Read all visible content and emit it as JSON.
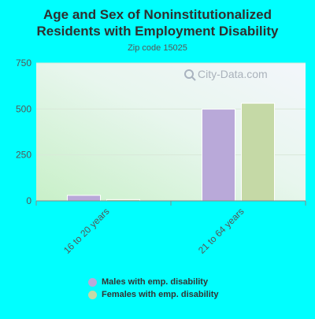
{
  "chart_data": {
    "type": "bar",
    "title_lines": [
      "Age and Sex of Noninstitutionalized",
      "Residents with Employment Disability"
    ],
    "subtitle": "Zip code 15025",
    "watermark": "City-Data.com",
    "categories": [
      "16 to 20 years",
      "21 to 64 years"
    ],
    "series": [
      {
        "name": "Males with emp. disability",
        "color": "#b9a9d9",
        "values": [
          30,
          499
        ]
      },
      {
        "name": "Females with emp. disability",
        "color": "#c5d9a6",
        "values": [
          7,
          531
        ]
      }
    ],
    "yticks": [
      "0",
      "250",
      "500",
      "750"
    ],
    "ylim": [
      0,
      750
    ],
    "grid": true,
    "legend_position": "bottom"
  }
}
